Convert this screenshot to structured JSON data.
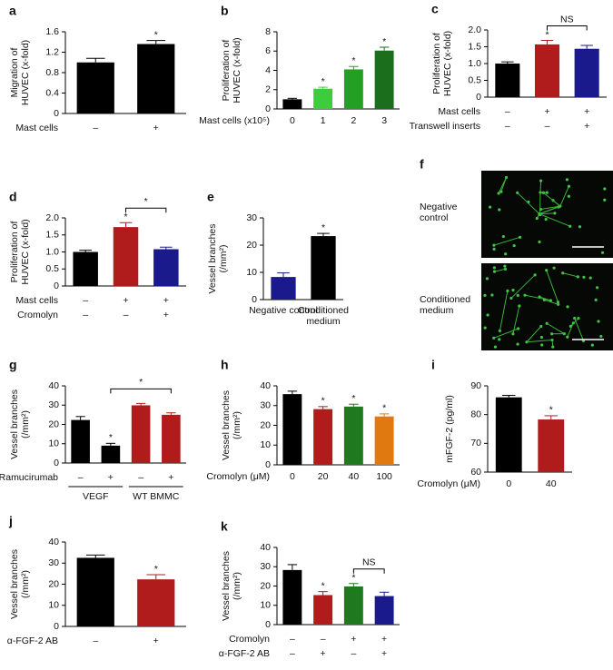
{
  "chart_data": [
    {
      "type": "bar",
      "label": "a",
      "ylabel": [
        "Migration of",
        "HUVEC (x-fold)"
      ],
      "ylim": [
        0,
        1.6
      ],
      "yticks": [
        0,
        0.4,
        0.8,
        1.2,
        1.6
      ],
      "values": [
        1.0,
        1.36
      ],
      "errors": [
        0.08,
        0.07
      ],
      "colors": [
        "#000000",
        "#000000"
      ],
      "condition_rows": [
        {
          "label": "Mast cells",
          "values": [
            "–",
            "+"
          ]
        }
      ],
      "annotations": [
        {
          "text": "*",
          "index": 1
        }
      ]
    },
    {
      "type": "bar",
      "label": "b",
      "ylabel": [
        "Proliferation of",
        "HUVEC (x-fold)"
      ],
      "ylim": [
        0,
        8
      ],
      "yticks": [
        0,
        2,
        4,
        6,
        8
      ],
      "categories": [
        "0",
        "1",
        "2",
        "3"
      ],
      "xlabel": "Mast cells (x10⁵)",
      "values": [
        1.0,
        2.1,
        4.1,
        6.05
      ],
      "errors": [
        0.1,
        0.15,
        0.3,
        0.35
      ],
      "colors": [
        "#000000",
        "#3ccc3c",
        "#23a023",
        "#1b6e1b"
      ],
      "annotations": [
        {
          "text": "*",
          "index": 1
        },
        {
          "text": "*",
          "index": 2
        },
        {
          "text": "*",
          "index": 3
        }
      ]
    },
    {
      "type": "bar",
      "label": "c",
      "ylabel": [
        "Proliferation of",
        "HUVEC (x-fold)"
      ],
      "ylim": [
        0,
        2.0
      ],
      "yticks": [
        0,
        0.5,
        {
          "value": 1.0,
          "label": "1.0"
        },
        1.5,
        {
          "value": 2.0,
          "label": "2.0"
        }
      ],
      "values": [
        1.0,
        1.57,
        1.44
      ],
      "errors": [
        0.05,
        0.12,
        0.1
      ],
      "colors": [
        "#000000",
        "#b01c1c",
        "#1a1a8c"
      ],
      "condition_rows": [
        {
          "label": "Mast cells",
          "values": [
            "–",
            "+",
            "+"
          ]
        },
        {
          "label": "Transwell inserts",
          "values": [
            "–",
            "–",
            "+"
          ]
        }
      ],
      "annotations": [
        {
          "text": "*",
          "index": 1
        }
      ],
      "brackets": [
        {
          "text": "NS",
          "from": 1,
          "to": 2
        }
      ]
    },
    {
      "type": "bar",
      "label": "d",
      "ylabel": [
        "Proliferation of",
        "HUVEC (x-fold)"
      ],
      "ylim": [
        0,
        2.0
      ],
      "yticks": [
        0,
        0.5,
        {
          "value": 1.0,
          "label": "1.0"
        },
        1.5,
        {
          "value": 2.0,
          "label": "2.0"
        }
      ],
      "values": [
        1.0,
        1.73,
        1.08
      ],
      "errors": [
        0.05,
        0.13,
        0.06
      ],
      "colors": [
        "#000000",
        "#b01c1c",
        "#1a1a8c"
      ],
      "condition_rows": [
        {
          "label": "Mast cells",
          "values": [
            "–",
            "+",
            "+"
          ]
        },
        {
          "label": "Cromolyn",
          "values": [
            "–",
            "–",
            "+"
          ]
        }
      ],
      "annotations": [
        {
          "text": "*",
          "index": 1
        }
      ],
      "brackets": [
        {
          "text": "*",
          "from": 1,
          "to": 2
        }
      ]
    },
    {
      "type": "bar",
      "label": "e",
      "ylabel": [
        "Vessel branches",
        "(/mm²)"
      ],
      "ylim": [
        0,
        30
      ],
      "yticks": [
        0,
        10,
        20,
        30
      ],
      "categories": [
        "Negative control",
        "Conditioned medium"
      ],
      "values": [
        8.3,
        23.3
      ],
      "errors": [
        1.5,
        1.0
      ],
      "colors": [
        "#1a1a8c",
        "#000000"
      ],
      "annotations": [
        {
          "text": "*",
          "index": 1
        }
      ]
    },
    {
      "type": "bar",
      "label": "g",
      "ylabel": [
        "Vessel branches",
        "(/mm²)"
      ],
      "ylim": [
        0,
        40
      ],
      "yticks": [
        0,
        10,
        20,
        30,
        40
      ],
      "values": [
        22.3,
        9.0,
        29.9,
        25.0
      ],
      "errors": [
        1.8,
        1.2,
        1.0,
        1.0
      ],
      "colors": [
        "#000000",
        "#000000",
        "#b01c1c",
        "#b01c1c"
      ],
      "condition_rows": [
        {
          "label": "Ramucirumab",
          "values": [
            "–",
            "+",
            "–",
            "+"
          ]
        }
      ],
      "groups": [
        {
          "label": "VEGF",
          "from": 0,
          "to": 1
        },
        {
          "label": "WT BMMC",
          "from": 2,
          "to": 3
        }
      ],
      "annotations": [
        {
          "text": "*",
          "index": 1
        }
      ],
      "brackets": [
        {
          "text": "*",
          "from": 1,
          "to": 3
        }
      ]
    },
    {
      "type": "bar",
      "label": "h",
      "ylabel": [
        "Vessel branches",
        "(/mm²)"
      ],
      "ylim": [
        0,
        40
      ],
      "yticks": [
        0,
        10,
        20,
        30,
        40
      ],
      "categories": [
        "0",
        "20",
        "40",
        "100"
      ],
      "xlabel": "Cromolyn (μM)",
      "values": [
        35.8,
        28.2,
        29.5,
        24.5
      ],
      "errors": [
        1.5,
        1.3,
        1.2,
        1.3
      ],
      "colors": [
        "#000000",
        "#b01c1c",
        "#1e7a1e",
        "#e07a10"
      ],
      "annotations": [
        {
          "text": "*",
          "index": 1
        },
        {
          "text": "*",
          "index": 2
        },
        {
          "text": "*",
          "index": 3
        }
      ]
    },
    {
      "type": "bar",
      "label": "i",
      "ylabel": [
        "mFGF-2 (pg/ml)"
      ],
      "ylim": [
        60,
        90
      ],
      "yticks": [
        60,
        70,
        80,
        90
      ],
      "categories": [
        "0",
        "40"
      ],
      "xlabel": "Cromolyn (μM)",
      "values": [
        86.0,
        78.3
      ],
      "errors": [
        0.7,
        1.3
      ],
      "colors": [
        "#000000",
        "#b01c1c"
      ],
      "annotations": [
        {
          "text": "*",
          "index": 1
        }
      ]
    },
    {
      "type": "bar",
      "label": "j",
      "ylabel": [
        "Vessel branches",
        "(/mm²)"
      ],
      "ylim": [
        0,
        40
      ],
      "yticks": [
        0,
        10,
        20,
        30,
        40
      ],
      "values": [
        32.5,
        22.3
      ],
      "errors": [
        1.3,
        2.2
      ],
      "colors": [
        "#000000",
        "#b01c1c"
      ],
      "condition_rows": [
        {
          "label": "α-FGF-2 AB",
          "values": [
            "–",
            "+"
          ]
        }
      ],
      "annotations": [
        {
          "text": "*",
          "index": 1
        }
      ]
    },
    {
      "type": "bar",
      "label": "k",
      "ylabel": [
        "Vessel branches",
        "(/mm²)"
      ],
      "ylim": [
        0,
        40
      ],
      "yticks": [
        0,
        10,
        20,
        30,
        40
      ],
      "values": [
        28.3,
        15.3,
        19.8,
        14.8
      ],
      "errors": [
        2.8,
        1.8,
        1.5,
        2.0
      ],
      "colors": [
        "#000000",
        "#b01c1c",
        "#1e7a1e",
        "#1a1a8c"
      ],
      "condition_rows": [
        {
          "label": "Cromolyn",
          "values": [
            "–",
            "–",
            "+",
            "+"
          ]
        },
        {
          "label": "α-FGF-2 AB",
          "values": [
            "–",
            "+",
            "–",
            "+"
          ]
        }
      ],
      "annotations": [
        {
          "text": "*",
          "index": 1
        },
        {
          "text": "*",
          "index": 2
        }
      ],
      "brackets": [
        {
          "text": "NS",
          "from": 2,
          "to": 3
        }
      ]
    }
  ],
  "images": {
    "label": "f",
    "captions": [
      "Negative control",
      "Conditioned medium"
    ]
  }
}
